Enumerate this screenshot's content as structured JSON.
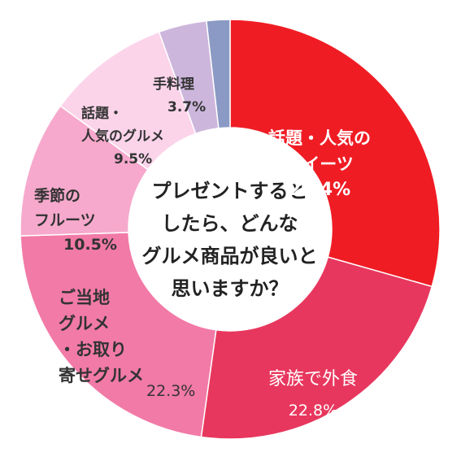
{
  "chart_data": {
    "type": "pie",
    "title": "プレゼントすると\nしたら、どんな\nグルメ商品が良いと\n思いますか？",
    "slices": [
      {
        "label": "話題・人気の\nスイーツ",
        "value_label": "29.4%",
        "value": 29.4,
        "color": "#f01c24"
      },
      {
        "label": "家族で外食",
        "value_label": "22.8%",
        "value": 22.8,
        "color": "#e8375e"
      },
      {
        "label": "ご当地\nグルメ\n・お取り\n寄せグルメ",
        "value_label": "22.3%",
        "value": 22.3,
        "color": "#f27aa6"
      },
      {
        "label": "季節の\nフルーツ",
        "value_label": "10.5%",
        "value": 10.5,
        "color": "#f6a9cc"
      },
      {
        "label": "話題・\n人気のグルメ",
        "value_label": "9.5%",
        "value": 9.5,
        "color": "#fbd4ea"
      },
      {
        "label": "手料理",
        "value_label": "3.7%",
        "value": 3.7,
        "color": "#cdb6dc"
      },
      {
        "label": "",
        "value_label": "",
        "value": 1.8,
        "color": "#8b9ac4"
      }
    ]
  }
}
